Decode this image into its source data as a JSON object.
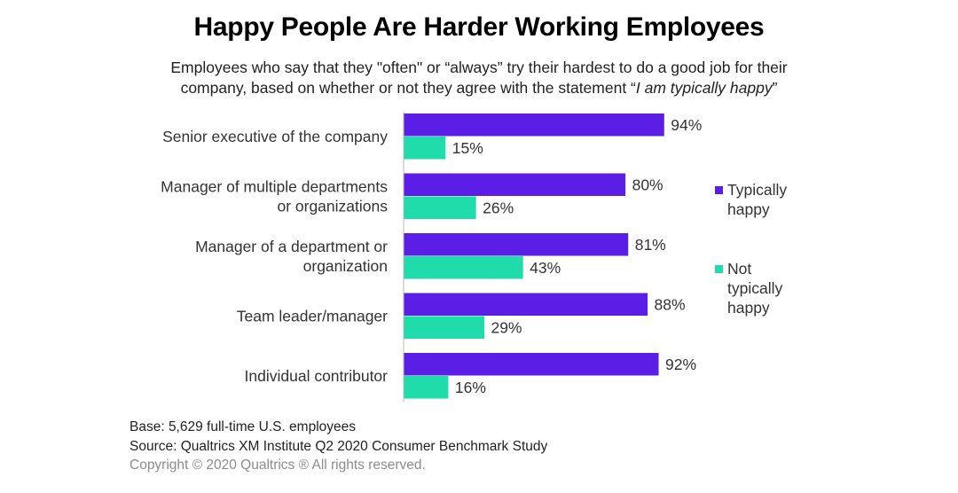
{
  "header": {
    "title": "Happy People Are Harder Working Employees",
    "subtitle_line1": "Employees who say that they \"often\" or “always” try their hardest to do a good job for their",
    "subtitle_line2_prefix": "company, based on whether or not they agree with the statement “",
    "subtitle_line2_italic": "I am typically happy",
    "subtitle_line2_suffix": "”"
  },
  "chart_data": {
    "type": "bar",
    "orientation": "horizontal",
    "categories": [
      [
        "Senior executive of the company"
      ],
      [
        "Manager of multiple departments",
        "or organizations"
      ],
      [
        "Manager of a department or",
        "organization"
      ],
      [
        "Team leader/manager"
      ],
      [
        "Individual contributor"
      ]
    ],
    "series": [
      {
        "name": "Typically happy",
        "legend_lines": [
          "Typically",
          "happy"
        ],
        "values": [
          94,
          80,
          81,
          88,
          92
        ],
        "color": "#5b1ee6"
      },
      {
        "name": "Not typically happy",
        "legend_lines": [
          "Not",
          "typically",
          "happy"
        ],
        "values": [
          15,
          26,
          43,
          29,
          16
        ],
        "color": "#1fdcaa"
      }
    ],
    "value_suffix": "%",
    "xlim": [
      0,
      100
    ],
    "grid": false,
    "legend_position": "right"
  },
  "footer": {
    "base": "Base: 5,629 full-time U.S. employees",
    "source": "Source: Qualtrics XM Institute Q2 2020 Consumer Benchmark Study",
    "copyright": "Copyright © 2020 Qualtrics ® All rights reserved."
  }
}
